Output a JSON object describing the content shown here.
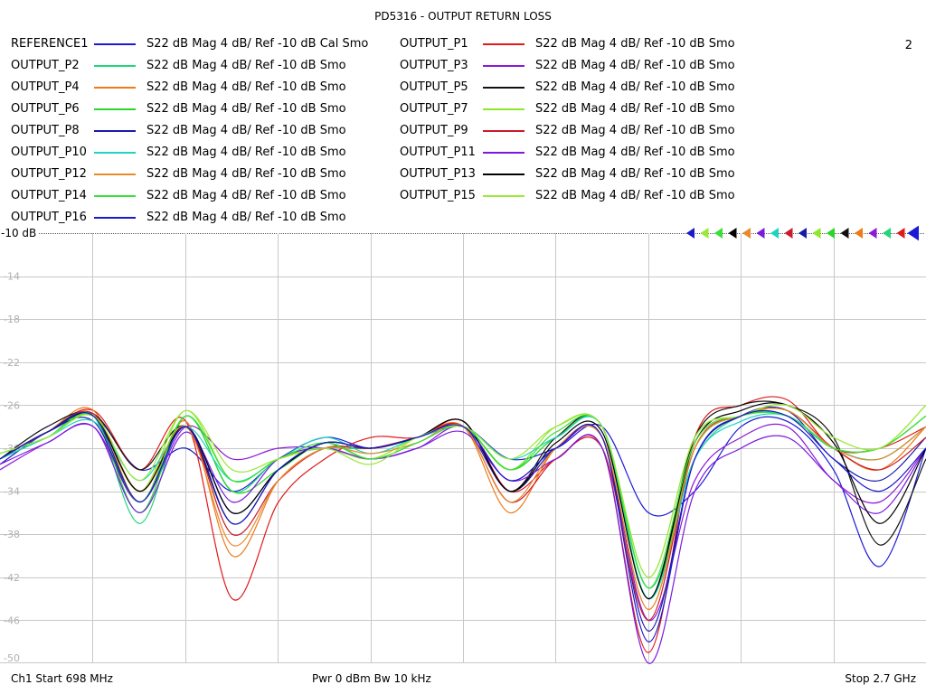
{
  "title": "PD5316 - OUTPUT RETURN LOSS",
  "channel_number": "2",
  "reference_label": "-10 dB",
  "footer": {
    "left": "Ch1  Start  698 MHz",
    "middle": "Pwr  0 dBm  Bw  10 kHz",
    "right": "Stop  2.7 GHz"
  },
  "chart_data": {
    "type": "line",
    "title": "PD5316 - OUTPUT RETURN LOSS",
    "x_start_mhz": 698,
    "x_stop_mhz": 2700,
    "ylim": [
      -50,
      -10
    ],
    "yticks": [
      -10,
      -14,
      -18,
      -22,
      -26,
      -30,
      -34,
      -38,
      -42,
      -46,
      -50
    ],
    "ytick_labels": [
      "-10",
      "-14",
      "-18",
      "-22",
      "-26",
      "-30",
      "-34",
      "-38",
      "-42",
      "-46",
      "-50"
    ],
    "grid": true,
    "x_divisions": 10,
    "legend_placement": "top",
    "series": [
      {
        "name": "REFERENCE1",
        "desc": "S22  dB Mag  4 dB/ Ref -10 dB  Cal Smo",
        "color": "#1a1ad6",
        "x": [
          698,
          800,
          900,
          1000,
          1100,
          1200,
          1300,
          1400,
          1500,
          1600,
          1700,
          1800,
          1900,
          2000,
          2100,
          2200,
          2300,
          2400,
          2500,
          2600,
          2700
        ],
        "y": [
          -31.5,
          -28.5,
          -27,
          -32,
          -30,
          -34,
          -31,
          -29,
          -30,
          -29,
          -28,
          -31,
          -30,
          -28,
          -36,
          -34,
          -28,
          -27.5,
          -32,
          -41,
          -30
        ]
      },
      {
        "name": "OUTPUT_P1",
        "desc": "S22  dB Mag  4 dB/ Ref -10 dB  Smo",
        "color": "#e01a1a",
        "x": [
          698,
          800,
          900,
          1000,
          1100,
          1200,
          1300,
          1400,
          1500,
          1600,
          1700,
          1800,
          1900,
          2000,
          2100,
          2200,
          2300,
          2400,
          2500,
          2600,
          2700
        ],
        "y": [
          -31,
          -28.5,
          -26.5,
          -32,
          -27.5,
          -44,
          -35,
          -31,
          -29,
          -29,
          -27.5,
          -34,
          -31,
          -30,
          -49,
          -29,
          -26,
          -25.5,
          -30,
          -30,
          -28
        ]
      },
      {
        "name": "OUTPUT_P2",
        "desc": "S22  dB Mag  4 dB/ Ref -10 dB  Smo",
        "color": "#22d67a",
        "x": [
          698,
          800,
          900,
          1000,
          1100,
          1200,
          1300,
          1400,
          1500,
          1600,
          1700,
          1800,
          1900,
          2000,
          2100,
          2200,
          2300,
          2400,
          2500,
          2600,
          2700
        ],
        "y": [
          -31,
          -29,
          -27,
          -37,
          -27,
          -34,
          -31,
          -30,
          -30,
          -29,
          -28,
          -32,
          -29,
          -28,
          -43,
          -31,
          -27,
          -27,
          -30,
          -31,
          -28
        ]
      },
      {
        "name": "OUTPUT_P3",
        "desc": "S22  dB Mag  4 dB/ Ref -10 dB  Smo",
        "color": "#8a1ad6",
        "x": [
          698,
          800,
          900,
          1000,
          1100,
          1200,
          1300,
          1400,
          1500,
          1600,
          1700,
          1800,
          1900,
          2000,
          2100,
          2200,
          2300,
          2400,
          2500,
          2600,
          2700
        ],
        "y": [
          -32,
          -29.5,
          -28,
          -35,
          -28,
          -31,
          -30,
          -30,
          -31,
          -30,
          -28,
          -33,
          -30,
          -29,
          -46,
          -33,
          -29,
          -28,
          -33,
          -35,
          -30
        ]
      },
      {
        "name": "OUTPUT_P4",
        "desc": "S22  dB Mag  4 dB/ Ref -10 dB  Smo",
        "color": "#ee7a1a",
        "x": [
          698,
          800,
          900,
          1000,
          1100,
          1200,
          1300,
          1400,
          1500,
          1600,
          1700,
          1800,
          1900,
          2000,
          2100,
          2200,
          2300,
          2400,
          2500,
          2600,
          2700
        ],
        "y": [
          -31,
          -28.5,
          -26.5,
          -35,
          -27.5,
          -40,
          -33,
          -30,
          -30,
          -29,
          -28,
          -36,
          -30,
          -29,
          -45,
          -30,
          -27,
          -26.5,
          -30,
          -32,
          -28
        ]
      },
      {
        "name": "OUTPUT_P5",
        "desc": "S22  dB Mag  4 dB/ Ref -10 dB  Smo",
        "color": "#111111",
        "x": [
          698,
          800,
          900,
          1000,
          1100,
          1200,
          1300,
          1400,
          1500,
          1600,
          1700,
          1800,
          1900,
          2000,
          2100,
          2200,
          2300,
          2400,
          2500,
          2600,
          2700
        ],
        "y": [
          -31,
          -28,
          -26.8,
          -32,
          -28,
          -37,
          -32,
          -29.5,
          -30,
          -29,
          -27.5,
          -34,
          -29,
          -28,
          -44,
          -29,
          -26,
          -26,
          -29,
          -39,
          -31
        ]
      },
      {
        "name": "OUTPUT_P6",
        "desc": "S22  dB Mag  4 dB/ Ref -10 dB  Smo",
        "color": "#2ad62a",
        "x": [
          698,
          800,
          900,
          1000,
          1100,
          1200,
          1300,
          1400,
          1500,
          1600,
          1700,
          1800,
          1900,
          2000,
          2100,
          2200,
          2300,
          2400,
          2500,
          2600,
          2700
        ],
        "y": [
          -31,
          -28.5,
          -27,
          -36,
          -27,
          -34,
          -32,
          -29.5,
          -31,
          -29.5,
          -28,
          -32,
          -29,
          -28,
          -44,
          -30,
          -27,
          -27,
          -30,
          -30,
          -27
        ]
      },
      {
        "name": "OUTPUT_P7",
        "desc": "S22  dB Mag  4 dB/ Ref -10 dB  Smo",
        "color": "#8ee82a",
        "x": [
          698,
          800,
          900,
          1000,
          1100,
          1200,
          1300,
          1400,
          1500,
          1600,
          1700,
          1800,
          1900,
          2000,
          2100,
          2200,
          2300,
          2400,
          2500,
          2600,
          2700
        ],
        "y": [
          -30.5,
          -29,
          -27,
          -34,
          -26.5,
          -33,
          -31,
          -30,
          -31,
          -29,
          -28,
          -32,
          -28,
          -28,
          -42,
          -29,
          -27,
          -26,
          -29,
          -30,
          -26
        ]
      },
      {
        "name": "OUTPUT_P8",
        "desc": "S22  dB Mag  4 dB/ Ref -10 dB  Smo",
        "color": "#1a1aaa",
        "x": [
          698,
          800,
          900,
          1000,
          1100,
          1200,
          1300,
          1400,
          1500,
          1600,
          1700,
          1800,
          1900,
          2000,
          2100,
          2200,
          2300,
          2400,
          2500,
          2600,
          2700
        ],
        "y": [
          -31,
          -28.5,
          -27.5,
          -35,
          -28,
          -36,
          -32,
          -29.5,
          -30,
          -29,
          -28,
          -34,
          -30,
          -29,
          -47,
          -31,
          -27,
          -26.5,
          -31,
          -33,
          -29
        ]
      },
      {
        "name": "OUTPUT_P9",
        "desc": "S22  dB Mag  4 dB/ Ref -10 dB  Smo",
        "color": "#cc1a2a",
        "x": [
          698,
          800,
          900,
          1000,
          1100,
          1200,
          1300,
          1400,
          1500,
          1600,
          1700,
          1800,
          1900,
          2000,
          2100,
          2200,
          2300,
          2400,
          2500,
          2600,
          2700
        ],
        "y": [
          -31,
          -28.5,
          -26.8,
          -34,
          -28,
          -38,
          -33,
          -30,
          -30,
          -29,
          -28,
          -35,
          -31,
          -30,
          -46,
          -30,
          -27,
          -26.5,
          -30,
          -32,
          -29
        ]
      },
      {
        "name": "OUTPUT_P10",
        "desc": "S22  dB Mag  4 dB/ Ref -10 dB  Smo",
        "color": "#1ad6c0",
        "x": [
          698,
          800,
          900,
          1000,
          1100,
          1200,
          1300,
          1400,
          1500,
          1600,
          1700,
          1800,
          1900,
          2000,
          2100,
          2200,
          2300,
          2400,
          2500,
          2600,
          2700
        ],
        "y": [
          -31,
          -29,
          -27.5,
          -33,
          -28,
          -33,
          -31,
          -29,
          -30.5,
          -29,
          -28,
          -31,
          -29,
          -28,
          -44,
          -31,
          -27.5,
          -27,
          -30,
          -31,
          -28
        ]
      },
      {
        "name": "OUTPUT_P11",
        "desc": "S22  dB Mag  4 dB/ Ref -10 dB  Smo",
        "color": "#7a1ae0",
        "x": [
          698,
          800,
          900,
          1000,
          1100,
          1200,
          1300,
          1400,
          1500,
          1600,
          1700,
          1800,
          1900,
          2000,
          2100,
          2200,
          2300,
          2400,
          2500,
          2600,
          2700
        ],
        "y": [
          -31.5,
          -29.5,
          -28,
          -36,
          -28.5,
          -35,
          -31,
          -30,
          -31,
          -30,
          -28.5,
          -33,
          -31,
          -30,
          -50,
          -34,
          -30,
          -29,
          -33,
          -36,
          -30
        ]
      },
      {
        "name": "OUTPUT_P12",
        "desc": "S22  dB Mag  4 dB/ Ref -10 dB  Smo",
        "color": "#e88a2a",
        "x": [
          698,
          800,
          900,
          1000,
          1100,
          1200,
          1300,
          1400,
          1500,
          1600,
          1700,
          1800,
          1900,
          2000,
          2100,
          2200,
          2300,
          2400,
          2500,
          2600,
          2700
        ],
        "y": [
          -31,
          -28.5,
          -27,
          -34,
          -28,
          -39,
          -33,
          -30,
          -30.5,
          -29.5,
          -28,
          -35,
          -30,
          -29,
          -45,
          -30,
          -27,
          -26.5,
          -30,
          -31,
          -28
        ]
      },
      {
        "name": "OUTPUT_P13",
        "desc": "S22  dB Mag  4 dB/ Ref -10 dB  Smo",
        "color": "#000000",
        "x": [
          698,
          800,
          900,
          1000,
          1100,
          1200,
          1300,
          1400,
          1500,
          1600,
          1700,
          1800,
          1900,
          2000,
          2100,
          2200,
          2300,
          2400,
          2500,
          2600,
          2700
        ],
        "y": [
          -31,
          -28.5,
          -27,
          -34,
          -28,
          -36,
          -32,
          -29.5,
          -30,
          -29,
          -27.5,
          -34,
          -29.5,
          -28.5,
          -44,
          -29.5,
          -26.5,
          -26,
          -29.5,
          -37,
          -30
        ]
      },
      {
        "name": "OUTPUT_P14",
        "desc": "S22  dB Mag  4 dB/ Ref -10 dB  Smo",
        "color": "#3ae03a",
        "x": [
          698,
          800,
          900,
          1000,
          1100,
          1200,
          1300,
          1400,
          1500,
          1600,
          1700,
          1800,
          1900,
          2000,
          2100,
          2200,
          2300,
          2400,
          2500,
          2600,
          2700
        ],
        "y": [
          -30.5,
          -29,
          -27,
          -35,
          -27,
          -33,
          -31,
          -29.5,
          -31,
          -29.5,
          -28,
          -32,
          -28.5,
          -28,
          -43,
          -29.5,
          -27,
          -27,
          -30,
          -30,
          -27
        ]
      },
      {
        "name": "OUTPUT_P15",
        "desc": "S22  dB Mag  4 dB/ Ref -10 dB  Smo",
        "color": "#9ae83a",
        "x": [
          698,
          800,
          900,
          1000,
          1100,
          1200,
          1300,
          1400,
          1500,
          1600,
          1700,
          1800,
          1900,
          2000,
          2100,
          2200,
          2300,
          2400,
          2500,
          2600,
          2700
        ],
        "y": [
          -30.5,
          -29,
          -27,
          -33,
          -26.5,
          -32,
          -31,
          -30,
          -31.5,
          -29,
          -28,
          -31,
          -28,
          -28,
          -42,
          -29,
          -27,
          -26,
          -29,
          -30,
          -26
        ]
      },
      {
        "name": "OUTPUT_P16",
        "desc": "S22  dB Mag  4 dB/ Ref -10 dB  Smo",
        "color": "#1a1acc",
        "x": [
          698,
          800,
          900,
          1000,
          1100,
          1200,
          1300,
          1400,
          1500,
          1600,
          1700,
          1800,
          1900,
          2000,
          2100,
          2200,
          2300,
          2400,
          2500,
          2600,
          2700
        ],
        "y": [
          -31,
          -28.5,
          -27,
          -35,
          -28,
          -37,
          -32,
          -29.5,
          -30,
          -29,
          -28,
          -33,
          -30,
          -29,
          -48,
          -31,
          -27,
          -27,
          -31,
          -34,
          -30
        ]
      }
    ]
  }
}
